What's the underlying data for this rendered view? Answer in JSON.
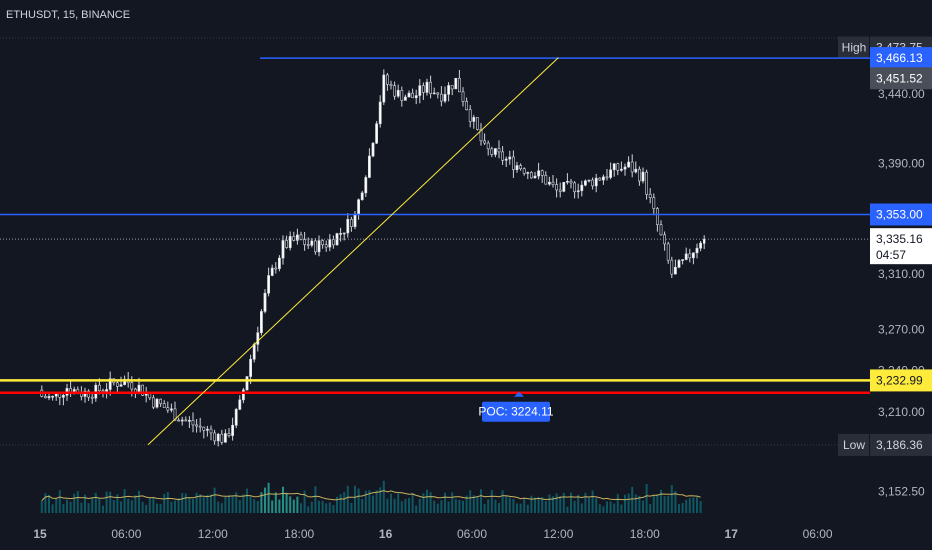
{
  "header": {
    "symbol": "ETHUSDT, 15, BINANCE"
  },
  "chart_data": {
    "type": "candlestick",
    "symbol": "ETHUSDT",
    "interval": "15",
    "exchange": "BINANCE",
    "ylim": [
      3140,
      3485
    ],
    "price_ticks": [
      3440.0,
      3390.0,
      3310.0,
      3270.0,
      3240.0,
      3210.0,
      3186.0,
      3152.5
    ],
    "time_ticks": [
      "15",
      "06:00",
      "12:00",
      "18:00",
      "16",
      "06:00",
      "12:00",
      "18:00",
      "17",
      "06:00"
    ],
    "time_ticks_hours": [
      0,
      6,
      12,
      18,
      24,
      30,
      36,
      42,
      48,
      54
    ],
    "candle_interval_minutes": 15,
    "closes_hourly": [
      3222,
      3220,
      3228,
      3224,
      3225,
      3230,
      3233,
      3228,
      3218,
      3212,
      3205,
      3200,
      3195,
      3190,
      3215,
      3260,
      3305,
      3330,
      3335,
      3330,
      3332,
      3340,
      3352,
      3395,
      3450,
      3440,
      3438,
      3445,
      3440,
      3450,
      3425,
      3400,
      3395,
      3390,
      3385,
      3380,
      3370,
      3373,
      3375,
      3380,
      3385,
      3388,
      3380,
      3345,
      3310,
      3320,
      3335
    ],
    "current_candle_ohlc": [
      3332,
      3338,
      3328,
      3335.16
    ],
    "horizontal_levels": [
      {
        "label": "High",
        "price": 3473.75,
        "color": "#2a2e39",
        "text_color": "#d1d4dc",
        "style": "tag"
      },
      {
        "price": 3466.13,
        "color": "#2962ff",
        "text_color": "#ffffff",
        "style": "line"
      },
      {
        "price": 3451.52,
        "color": "#4a4e59",
        "text_color": "#ffffff",
        "style": "tag"
      },
      {
        "price": 3353.0,
        "color": "#2962ff",
        "text_color": "#ffffff",
        "style": "line"
      },
      {
        "price": 3335.16,
        "color": "#ffffff",
        "text_color": "#131722",
        "style": "dotted",
        "countdown": "04:57"
      },
      {
        "price": 3232.99,
        "color": "#ffeb3b",
        "text_color": "#131722",
        "style": "line"
      },
      {
        "price": 3224.11,
        "color": "#ff0000",
        "style": "line",
        "label": "POC: 3224.11"
      },
      {
        "label": "Low",
        "price": 3186.36,
        "color": "#2a2e39",
        "text_color": "#d1d4dc",
        "style": "tag"
      }
    ],
    "trendline": {
      "start": [
        "15 07:30",
        3186.5
      ],
      "end": [
        "16 12:00",
        3466.5
      ],
      "color": "#ffeb3b"
    },
    "colors": {
      "up": "#ffffff",
      "down": "#ffffff",
      "volume": "#0e6470",
      "volume_highlight": "#26a69a",
      "volume_ma": "#c9b25e"
    },
    "grid": false
  }
}
